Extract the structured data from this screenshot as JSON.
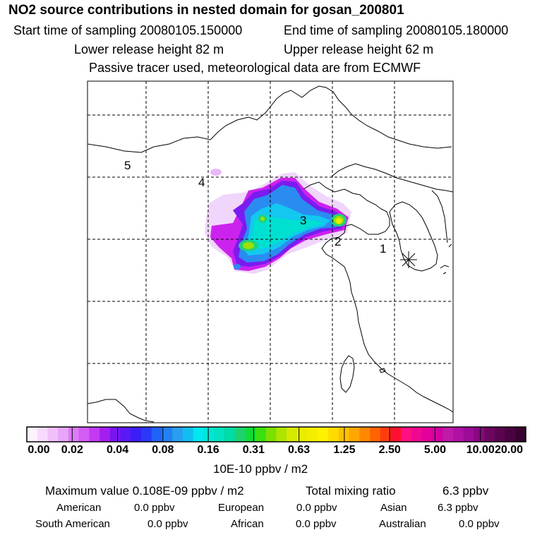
{
  "header": {
    "title": "NO2 source contributions in nested domain for gosan_200801",
    "start_time": "Start time of sampling 20080105.150000",
    "end_time": "End time of sampling 20080105.180000",
    "lower_height": "Lower release height   82 m",
    "upper_height": "Upper release height   62 m",
    "note": "Passive tracer used, meteorological data are from ECMWF"
  },
  "map": {
    "region_labels": [
      "1",
      "2",
      "3",
      "4",
      "5"
    ],
    "receptor_marker": "asterisk-receptor-icon",
    "hotspot_colors": [
      "#cc22ee",
      "#7a1cf0",
      "#2a8cf0",
      "#12c8f0",
      "#00e0d0",
      "#21d27a",
      "#9ee000",
      "#e8f000"
    ]
  },
  "colorbar": {
    "labels": [
      "0.00",
      "0.02",
      "0.04",
      "0.08",
      "0.16",
      "0.31",
      "0.63",
      "1.25",
      "2.50",
      "5.00",
      "10.00",
      "20.00"
    ],
    "colors": [
      "#fdf3ff",
      "#f8daff",
      "#f0c0fb",
      "#e9a6f9",
      "#dd7cf6",
      "#d35cf5",
      "#c23bf3",
      "#a51ef0",
      "#7a14f2",
      "#5a18f5",
      "#3a1ef8",
      "#2a38f8",
      "#1f62f6",
      "#2380f2",
      "#2a9ef0",
      "#12bef0",
      "#00e8f0",
      "#00e6d6",
      "#00e2c0",
      "#00dca6",
      "#1ed270",
      "#10dc36",
      "#3ae010",
      "#7ae000",
      "#b0e400",
      "#d6ea00",
      "#eaec00",
      "#f4ee00",
      "#fff200",
      "#ffdc00",
      "#ffc200",
      "#ffa600",
      "#ff8800",
      "#ff6400",
      "#ff3c10",
      "#ff1030",
      "#ff1080",
      "#f00890",
      "#e4009a",
      "#d000a0",
      "#c01aa8",
      "#b010a4",
      "#9e0a98",
      "#880880",
      "#6e0660",
      "#5a0450",
      "#480340",
      "#380230"
    ],
    "unit": "10E-10 ppbv / m2"
  },
  "stats": {
    "max_label": "Maximum value  0.108E-09 ppbv / m2",
    "total_label": "Total mixing ratio",
    "total_value": "6.3 ppbv",
    "regions": [
      {
        "name": "American",
        "value": "0.0 ppbv"
      },
      {
        "name": "European",
        "value": "0.0 ppbv"
      },
      {
        "name": "Asian",
        "value": "6.3 ppbv"
      },
      {
        "name": "South American",
        "value": "0.0 ppbv"
      },
      {
        "name": "African",
        "value": "0.0 ppbv"
      },
      {
        "name": "Australian",
        "value": "0.0 ppbv"
      }
    ]
  }
}
